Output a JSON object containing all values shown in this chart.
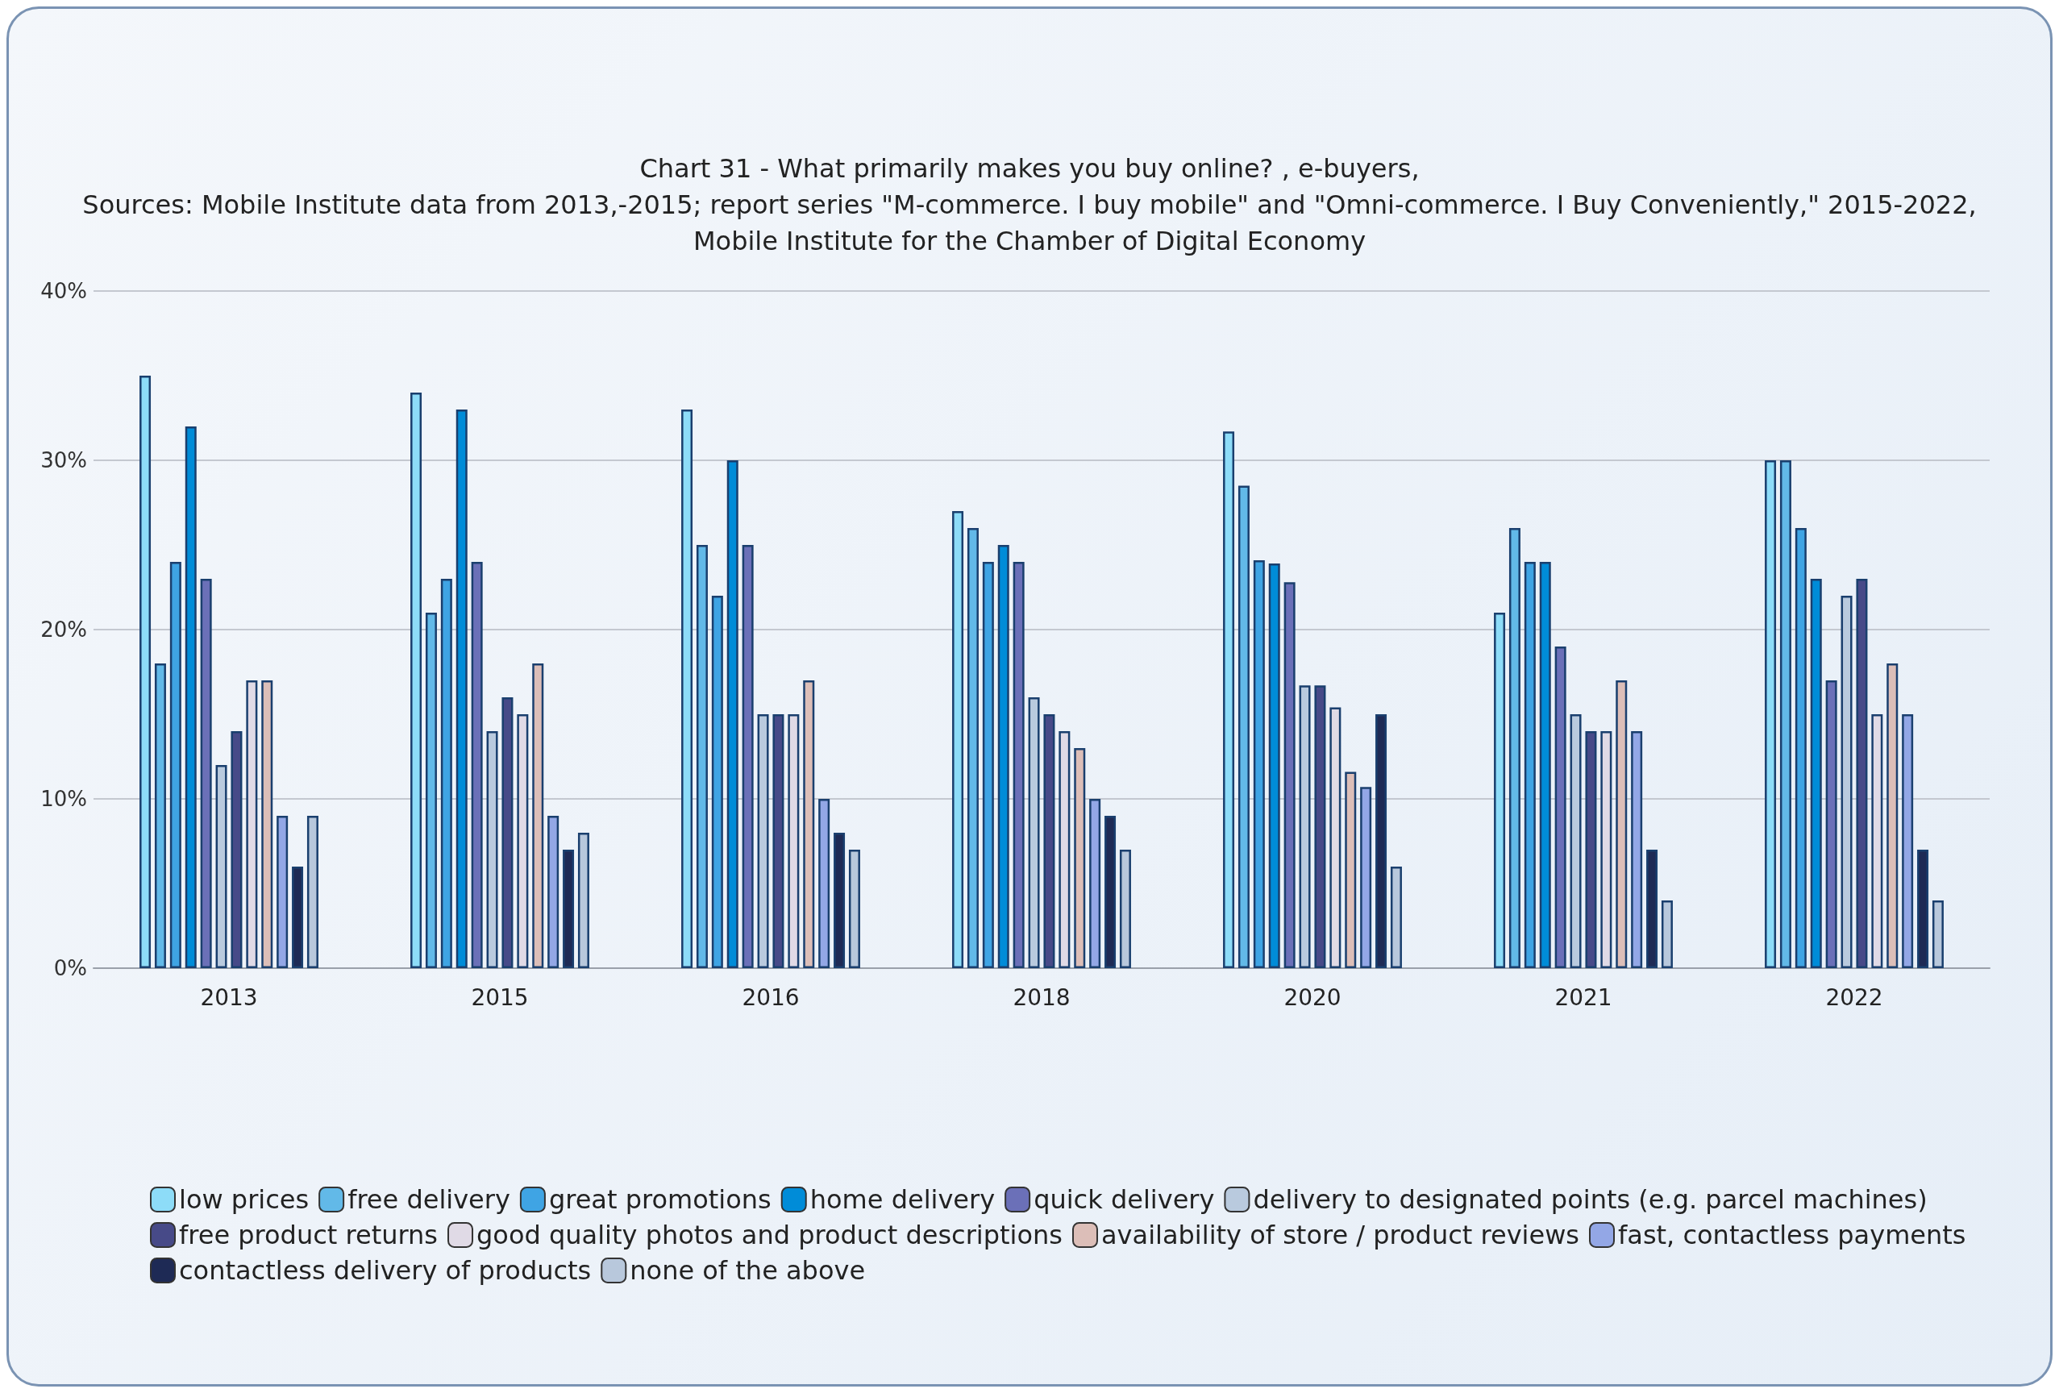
{
  "chart_data": {
    "type": "bar",
    "title": "Chart 31 - What primarily makes you buy online? , e-buyers,\nSources: Mobile Institute data from 2013,-2015; report series \"M-commerce. I buy mobile\" and \"Omni-commerce. I Buy Conveniently,\" 2015-2022,\nMobile Institute for the Chamber of Digital Economy",
    "categories": [
      "2013",
      "2015",
      "2016",
      "2018",
      "2020",
      "2021",
      "2022"
    ],
    "series": [
      {
        "name": "low prices",
        "color": "#8ddcf8",
        "values": [
          35,
          34,
          33,
          27,
          31.7,
          21,
          30
        ]
      },
      {
        "name": "free delivery",
        "color": "#62b9e8",
        "values": [
          18,
          21,
          25,
          26,
          28.5,
          26,
          30
        ]
      },
      {
        "name": "great promotions",
        "color": "#3fa4e4",
        "values": [
          24,
          23,
          22,
          24,
          24.1,
          24,
          26
        ]
      },
      {
        "name": "home delivery",
        "color": "#008cd8",
        "values": [
          32,
          33,
          30,
          25,
          23.9,
          24,
          23
        ]
      },
      {
        "name": "quick delivery",
        "color": "#6b70b8",
        "values": [
          23,
          24,
          25,
          24,
          22.8,
          19,
          17
        ]
      },
      {
        "name": "delivery to designated points (e.g. parcel machines)",
        "color": "#b9cade",
        "values": [
          12,
          14,
          15,
          16,
          16.7,
          15,
          22
        ]
      },
      {
        "name": "free product returns",
        "color": "#474a88",
        "values": [
          14,
          16,
          15,
          15,
          16.7,
          14,
          23
        ]
      },
      {
        "name": "good quality photos and product descriptions",
        "color": "#e0dae6",
        "values": [
          17,
          15,
          15,
          14,
          15.4,
          14,
          15
        ]
      },
      {
        "name": "availability of store / product reviews",
        "color": "#dcbeb8",
        "values": [
          17,
          18,
          17,
          13,
          11.6,
          17,
          18
        ]
      },
      {
        "name": "fast, contactless payments",
        "color": "#93a7e6",
        "values": [
          9,
          9,
          10,
          10,
          10.7,
          14,
          15
        ]
      },
      {
        "name": "contactless delivery of products",
        "color": "#1e2a55",
        "values": [
          6,
          7,
          8,
          9,
          15,
          7,
          7
        ]
      },
      {
        "name": "none of the above",
        "color": "#b8c8dc",
        "values": [
          9,
          8,
          7,
          7,
          6,
          4,
          4
        ]
      }
    ],
    "ylim": [
      0,
      40
    ],
    "yticks": [
      {
        "value": 0,
        "label": "0%"
      },
      {
        "value": 10,
        "label": "10%"
      },
      {
        "value": 20,
        "label": "20%"
      },
      {
        "value": 30,
        "label": "30%"
      },
      {
        "value": 40,
        "label": "40%"
      }
    ],
    "grid": "y",
    "legend": "bottom"
  }
}
